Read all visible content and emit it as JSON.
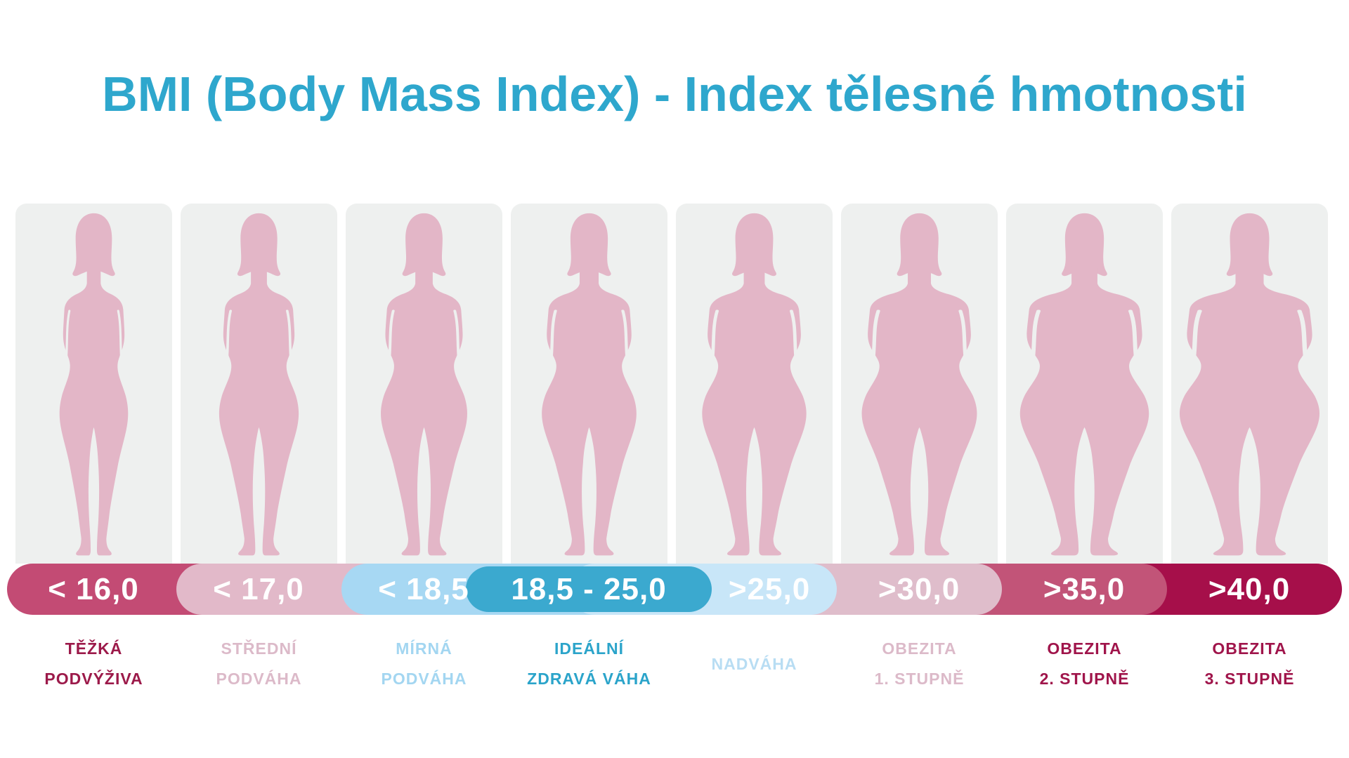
{
  "title": {
    "text": "BMI (Body Mass Index) - Index tělesné hmotnosti",
    "color": "#2ea7cd"
  },
  "band": {
    "value_text_color": "#ffffff"
  },
  "figure": {
    "silhouette_color": "#e3b6c7",
    "panel_color": "#eef0ef"
  },
  "categories": [
    {
      "id": "severe-underweight",
      "range": "< 16,0",
      "label_lines": [
        "TĚŽKÁ",
        "PODVÝŽIVA"
      ],
      "band_color": "#c34b74",
      "label_color": "#9c1a4a",
      "body_scale": 1.0
    },
    {
      "id": "moderate-underweight",
      "range": "< 17,0",
      "label_lines": [
        "STŘEDNÍ",
        "PODVÁHA"
      ],
      "band_color": "#e2b9c9",
      "label_color": "#dcbac9",
      "body_scale": 1.16
    },
    {
      "id": "mild-underweight",
      "range": "< 18,5",
      "label_lines": [
        "MÍRNÁ",
        "PODVÁHA"
      ],
      "band_color": "#a7d8f3",
      "label_color": "#a3d6f1",
      "body_scale": 1.26
    },
    {
      "id": "ideal-weight",
      "range": "18,5 - 25,0",
      "label_lines": [
        "IDEÁLNÍ",
        "ZDRAVÁ VÁHA"
      ],
      "band_color": "#3ba9cf",
      "label_color": "#2ba4ca",
      "body_scale": 1.38,
      "ideal": true
    },
    {
      "id": "overweight",
      "range": ">25,0",
      "label_lines": [
        "NADVÁHA"
      ],
      "band_color": "#c8e6f8",
      "label_color": "#b8ddf3",
      "body_scale": 1.52
    },
    {
      "id": "obesity-grade-1",
      "range": ">30,0",
      "label_lines": [
        "OBEZITA",
        "1. STUPNĚ"
      ],
      "band_color": "#dfbdcb",
      "label_color": "#dcbac9",
      "body_scale": 1.68
    },
    {
      "id": "obesity-grade-2",
      "range": ">35,0",
      "label_lines": [
        "OBEZITA",
        "2. STUPNĚ"
      ],
      "band_color": "#c25478",
      "label_color": "#a0154b",
      "body_scale": 1.88
    },
    {
      "id": "obesity-grade-3",
      "range": ">40,0",
      "label_lines": [
        "OBEZITA",
        "3. STUPNĚ"
      ],
      "band_color": "#a60f4a",
      "label_color": "#a0154b",
      "body_scale": 2.04
    }
  ]
}
